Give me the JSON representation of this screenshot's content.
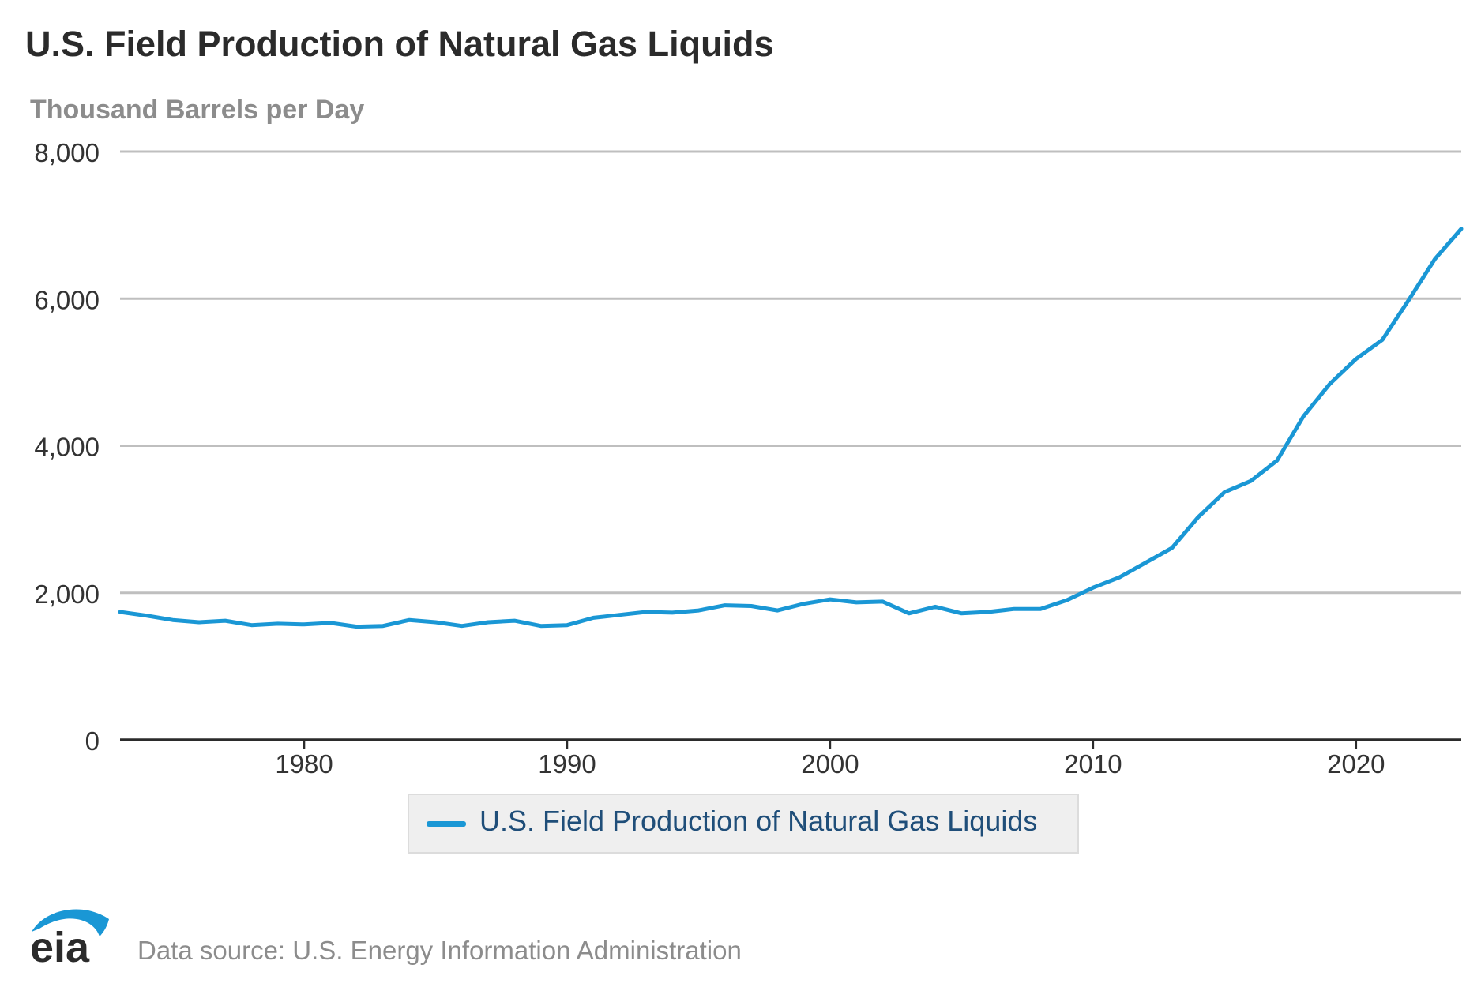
{
  "chart_data": {
    "type": "line",
    "title": "U.S. Field Production of Natural Gas Liquids",
    "subtitle": "Thousand Barrels per Day",
    "xlabel": "",
    "ylabel": "",
    "xlim": [
      1973,
      2024
    ],
    "ylim": [
      0,
      8000
    ],
    "grid": true,
    "yticks": [
      0,
      2000,
      4000,
      6000,
      8000
    ],
    "ytick_labels": [
      "0",
      "2,000",
      "4,000",
      "6,000",
      "8,000"
    ],
    "xticks": [
      1980,
      1990,
      2000,
      2010,
      2020
    ],
    "xtick_labels": [
      "1980",
      "1990",
      "2000",
      "2010",
      "2020"
    ],
    "legend_position": "bottom-center",
    "series": [
      {
        "name": "U.S. Field Production of Natural Gas Liquids",
        "color": "#1a97d5",
        "x": [
          1973,
          1974,
          1975,
          1976,
          1977,
          1978,
          1979,
          1980,
          1981,
          1982,
          1983,
          1984,
          1985,
          1986,
          1987,
          1988,
          1989,
          1990,
          1991,
          1992,
          1993,
          1994,
          1995,
          1996,
          1997,
          1998,
          1999,
          2000,
          2001,
          2002,
          2003,
          2004,
          2005,
          2006,
          2007,
          2008,
          2009,
          2010,
          2011,
          2012,
          2013,
          2014,
          2015,
          2016,
          2017,
          2018,
          2019,
          2020,
          2021,
          2022,
          2023,
          2024
        ],
        "values": [
          1740,
          1690,
          1630,
          1600,
          1620,
          1560,
          1580,
          1570,
          1590,
          1540,
          1550,
          1630,
          1600,
          1550,
          1600,
          1620,
          1550,
          1560,
          1660,
          1700,
          1740,
          1730,
          1760,
          1830,
          1820,
          1760,
          1850,
          1910,
          1870,
          1880,
          1720,
          1810,
          1720,
          1740,
          1780,
          1780,
          1900,
          2070,
          2210,
          2410,
          2610,
          3030,
          3370,
          3520,
          3800,
          4400,
          4840,
          5180,
          5440,
          5980,
          6540,
          6950
        ]
      }
    ]
  },
  "logo": {
    "text": "eia"
  },
  "footer": {
    "source": "Data source: U.S. Energy Information Administration"
  },
  "colors": {
    "line": "#1a97d5",
    "grid": "#bfbfbf",
    "axis": "#2b2b2b",
    "logo_arc": "#1a97d5"
  }
}
